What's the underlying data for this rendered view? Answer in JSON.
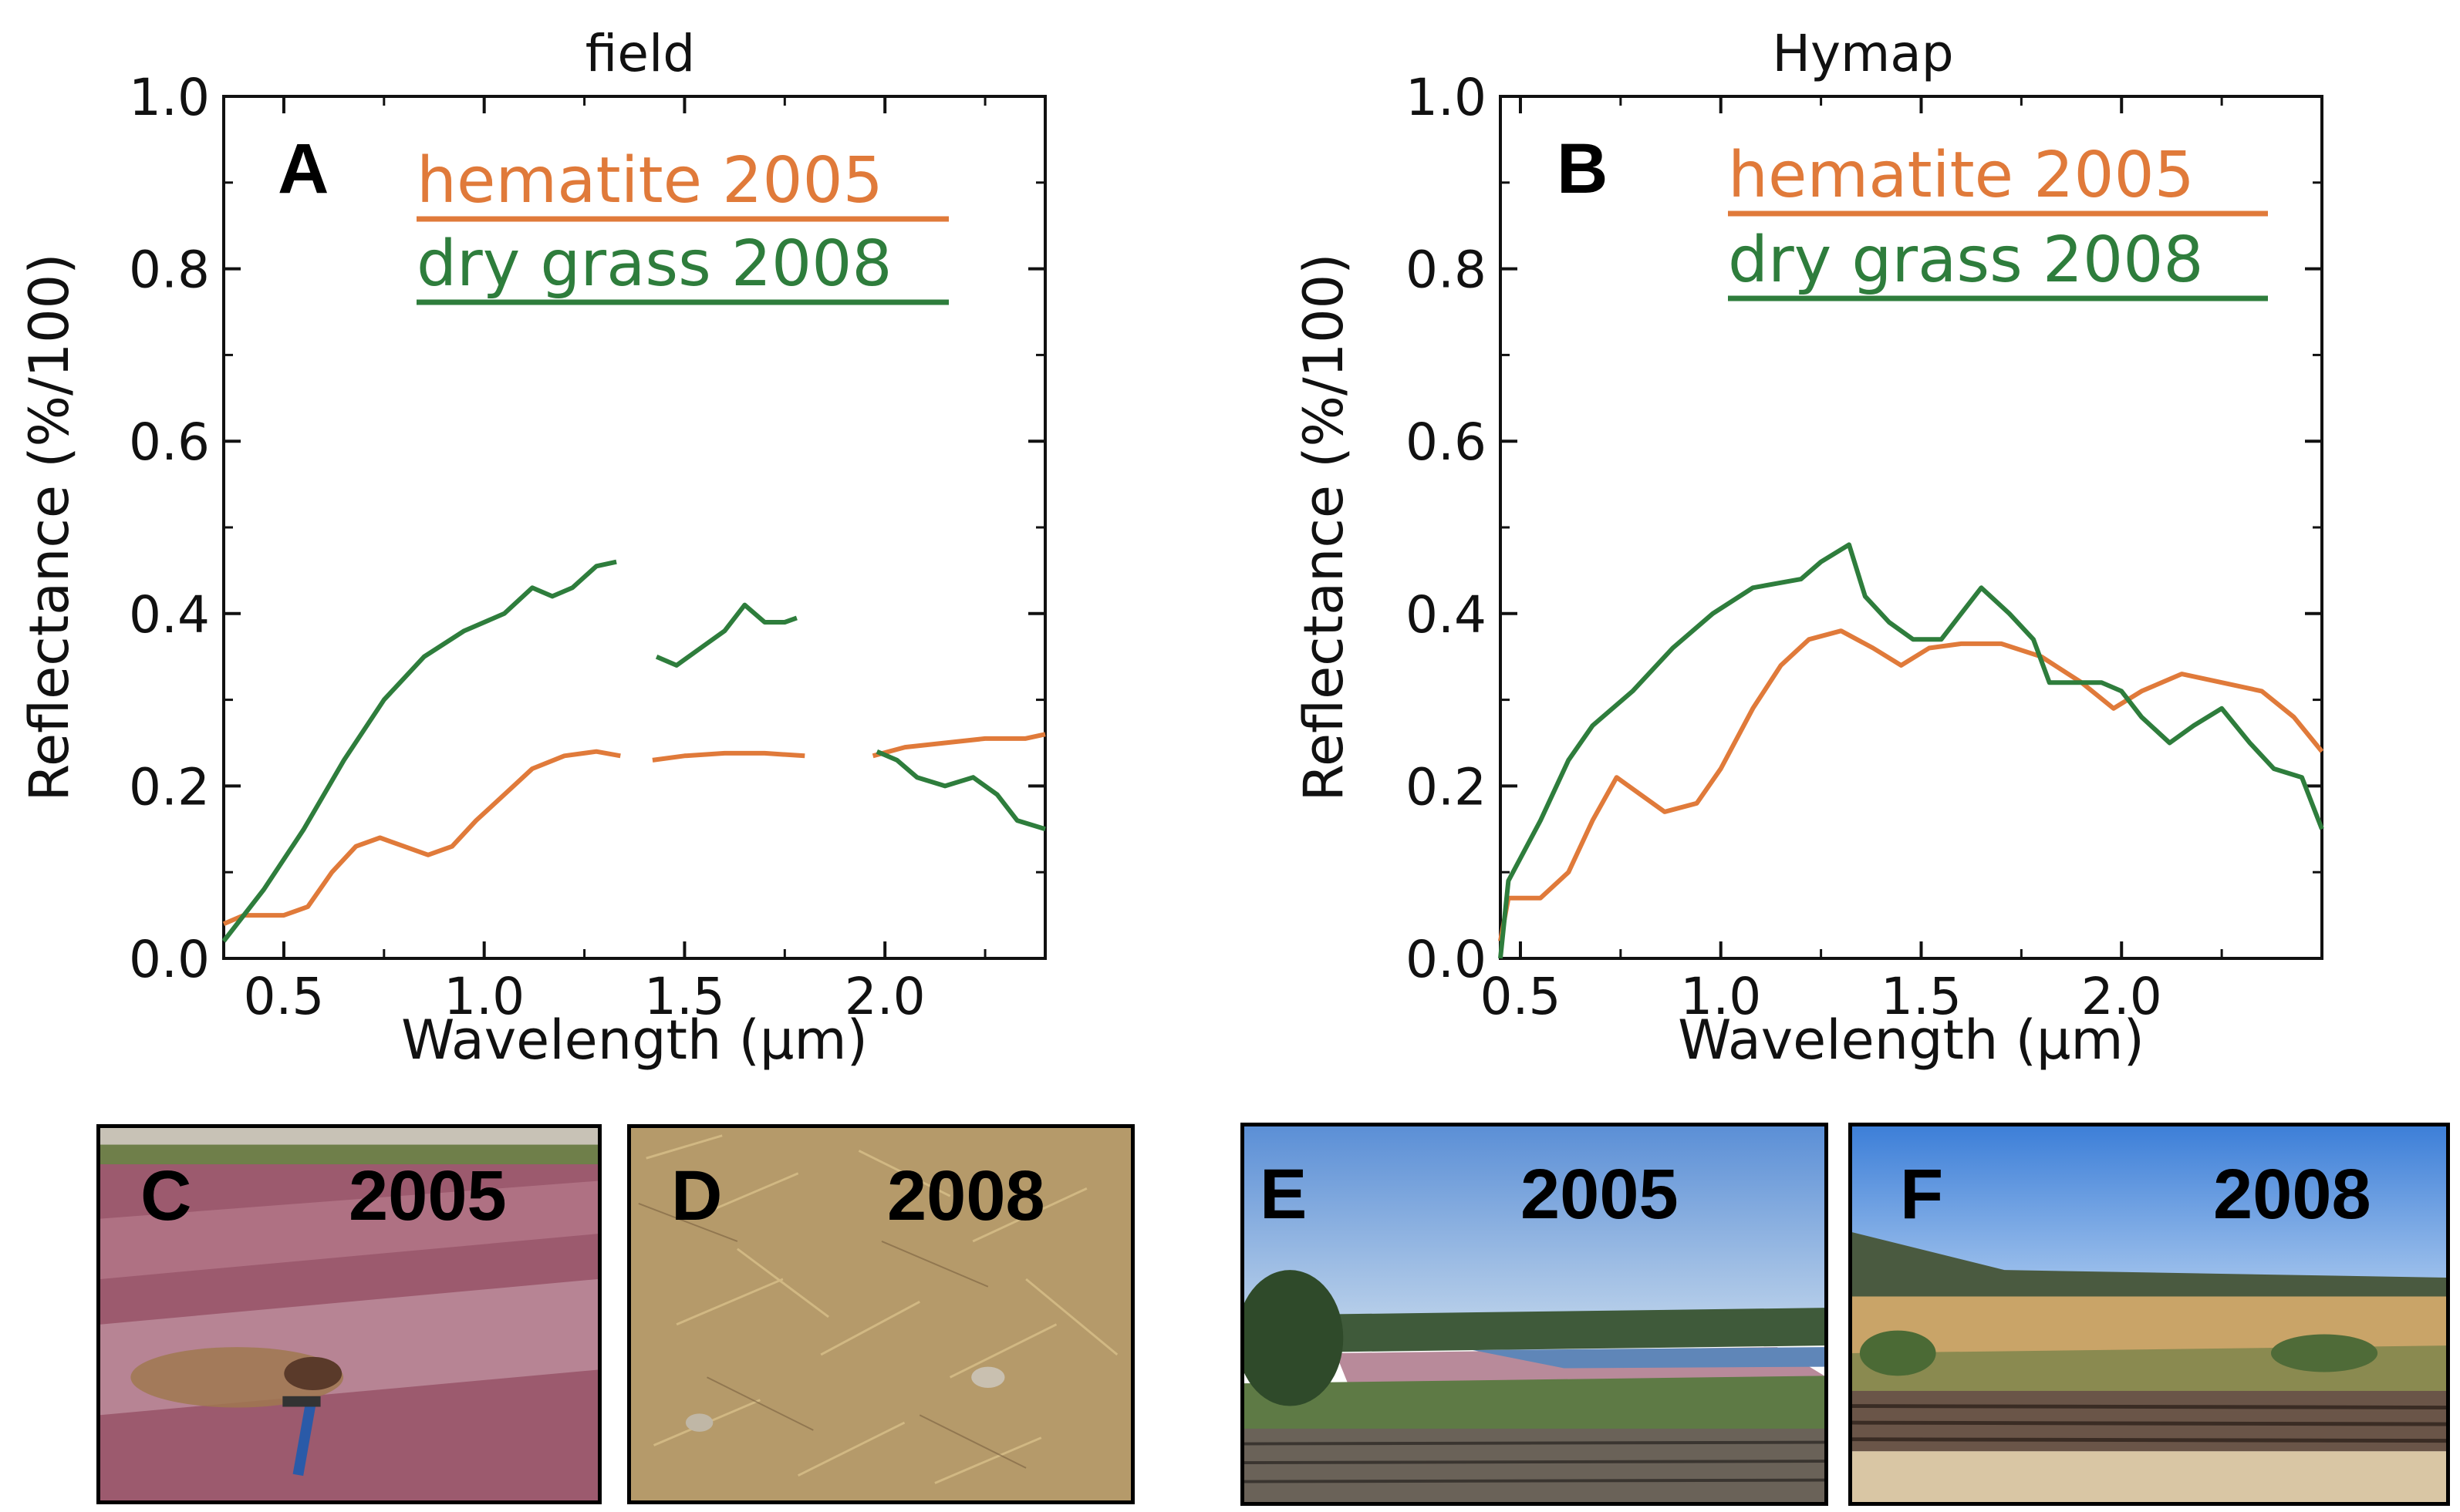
{
  "chart_data": [
    {
      "type": "line",
      "panel": "A",
      "title": "field",
      "xlabel": "Wavelength (μm)",
      "ylabel": "Reflectance (%/100)",
      "xlim": [
        0.35,
        2.4
      ],
      "ylim": [
        0.0,
        1.0
      ],
      "xticks": [
        0.5,
        1.0,
        1.5,
        2.0
      ],
      "xtick_labels": [
        "0.5",
        "1.0",
        "1.5",
        "2.0"
      ],
      "yticks": [
        0.0,
        0.2,
        0.4,
        0.6,
        0.8,
        1.0
      ],
      "ytick_labels": [
        "0.0",
        "0.2",
        "0.4",
        "0.6",
        "0.8",
        "1.0"
      ],
      "legend_position": "top-right",
      "series": [
        {
          "name": "hematite 2005",
          "color": "#e07a3a",
          "segments": [
            [
              [
                0.35,
                0.04
              ],
              [
                0.4,
                0.05
              ],
              [
                0.5,
                0.05
              ],
              [
                0.56,
                0.06
              ],
              [
                0.62,
                0.1
              ],
              [
                0.68,
                0.13
              ],
              [
                0.74,
                0.14
              ],
              [
                0.8,
                0.13
              ],
              [
                0.86,
                0.12
              ],
              [
                0.92,
                0.13
              ],
              [
                0.98,
                0.16
              ],
              [
                1.05,
                0.19
              ],
              [
                1.12,
                0.22
              ],
              [
                1.2,
                0.235
              ],
              [
                1.28,
                0.24
              ],
              [
                1.34,
                0.235
              ]
            ],
            [
              [
                1.42,
                0.23
              ],
              [
                1.5,
                0.235
              ],
              [
                1.6,
                0.238
              ],
              [
                1.7,
                0.238
              ],
              [
                1.8,
                0.235
              ]
            ],
            [
              [
                1.97,
                0.235
              ],
              [
                2.05,
                0.245
              ],
              [
                2.15,
                0.25
              ],
              [
                2.25,
                0.255
              ],
              [
                2.35,
                0.255
              ],
              [
                2.4,
                0.26
              ]
            ]
          ]
        },
        {
          "name": "dry grass 2008",
          "color": "#2e7d3c",
          "segments": [
            [
              [
                0.35,
                0.02
              ],
              [
                0.45,
                0.08
              ],
              [
                0.55,
                0.15
              ],
              [
                0.65,
                0.23
              ],
              [
                0.75,
                0.3
              ],
              [
                0.85,
                0.35
              ],
              [
                0.95,
                0.38
              ],
              [
                1.05,
                0.4
              ],
              [
                1.12,
                0.43
              ],
              [
                1.17,
                0.42
              ],
              [
                1.22,
                0.43
              ],
              [
                1.28,
                0.455
              ],
              [
                1.33,
                0.46
              ]
            ],
            [
              [
                1.43,
                0.35
              ],
              [
                1.48,
                0.34
              ],
              [
                1.54,
                0.36
              ],
              [
                1.6,
                0.38
              ],
              [
                1.65,
                0.41
              ],
              [
                1.7,
                0.39
              ],
              [
                1.75,
                0.39
              ],
              [
                1.78,
                0.395
              ]
            ],
            [
              [
                1.98,
                0.24
              ],
              [
                2.03,
                0.23
              ],
              [
                2.08,
                0.21
              ],
              [
                2.15,
                0.2
              ],
              [
                2.22,
                0.21
              ],
              [
                2.28,
                0.19
              ],
              [
                2.33,
                0.16
              ],
              [
                2.4,
                0.15
              ]
            ]
          ]
        }
      ]
    },
    {
      "type": "line",
      "panel": "B",
      "title": "Hymap",
      "xlabel": "Wavelength (μm)",
      "ylabel": "Reflectance (%/100)",
      "xlim": [
        0.45,
        2.5
      ],
      "ylim": [
        0.0,
        1.0
      ],
      "xticks": [
        0.5,
        1.0,
        1.5,
        2.0
      ],
      "xtick_labels": [
        "0.5",
        "1.0",
        "1.5",
        "2.0"
      ],
      "yticks": [
        0.0,
        0.2,
        0.4,
        0.6,
        0.8,
        1.0
      ],
      "ytick_labels": [
        "0.0",
        "0.2",
        "0.4",
        "0.6",
        "0.8",
        "1.0"
      ],
      "legend_position": "top-right",
      "series": [
        {
          "name": "hematite 2005",
          "color": "#e07a3a",
          "segments": [
            [
              [
                0.45,
                0.02
              ],
              [
                0.47,
                0.07
              ],
              [
                0.55,
                0.07
              ],
              [
                0.62,
                0.1
              ],
              [
                0.68,
                0.16
              ],
              [
                0.74,
                0.21
              ],
              [
                0.8,
                0.19
              ],
              [
                0.86,
                0.17
              ],
              [
                0.94,
                0.18
              ],
              [
                1.0,
                0.22
              ],
              [
                1.08,
                0.29
              ],
              [
                1.15,
                0.34
              ],
              [
                1.22,
                0.37
              ],
              [
                1.3,
                0.38
              ],
              [
                1.38,
                0.36
              ],
              [
                1.45,
                0.34
              ],
              [
                1.52,
                0.36
              ],
              [
                1.6,
                0.365
              ],
              [
                1.7,
                0.365
              ],
              [
                1.8,
                0.35
              ],
              [
                1.9,
                0.32
              ],
              [
                1.98,
                0.29
              ],
              [
                2.05,
                0.31
              ],
              [
                2.15,
                0.33
              ],
              [
                2.25,
                0.32
              ],
              [
                2.35,
                0.31
              ],
              [
                2.43,
                0.28
              ],
              [
                2.5,
                0.24
              ]
            ]
          ]
        },
        {
          "name": "dry grass 2008",
          "color": "#2e7d3c",
          "segments": [
            [
              [
                0.45,
                0.0
              ],
              [
                0.47,
                0.09
              ],
              [
                0.55,
                0.16
              ],
              [
                0.62,
                0.23
              ],
              [
                0.68,
                0.27
              ],
              [
                0.78,
                0.31
              ],
              [
                0.88,
                0.36
              ],
              [
                0.98,
                0.4
              ],
              [
                1.08,
                0.43
              ],
              [
                1.2,
                0.44
              ],
              [
                1.25,
                0.46
              ],
              [
                1.32,
                0.48
              ],
              [
                1.36,
                0.42
              ],
              [
                1.42,
                0.39
              ],
              [
                1.48,
                0.37
              ],
              [
                1.55,
                0.37
              ],
              [
                1.6,
                0.4
              ],
              [
                1.65,
                0.43
              ],
              [
                1.72,
                0.4
              ],
              [
                1.78,
                0.37
              ],
              [
                1.82,
                0.32
              ],
              [
                1.88,
                0.32
              ],
              [
                1.95,
                0.32
              ],
              [
                2.0,
                0.31
              ],
              [
                2.05,
                0.28
              ],
              [
                2.12,
                0.25
              ],
              [
                2.18,
                0.27
              ],
              [
                2.25,
                0.29
              ],
              [
                2.32,
                0.25
              ],
              [
                2.38,
                0.22
              ],
              [
                2.45,
                0.21
              ],
              [
                2.5,
                0.15
              ]
            ]
          ]
        }
      ]
    }
  ],
  "photos": [
    {
      "letter": "C",
      "year": "2005",
      "scene": "pink-hematite-ground"
    },
    {
      "letter": "D",
      "year": "2008",
      "scene": "dry-grass-ground"
    },
    {
      "letter": "E",
      "year": "2005",
      "scene": "landscape-hematite-lake"
    },
    {
      "letter": "F",
      "year": "2008",
      "scene": "landscape-dry-field"
    }
  ]
}
